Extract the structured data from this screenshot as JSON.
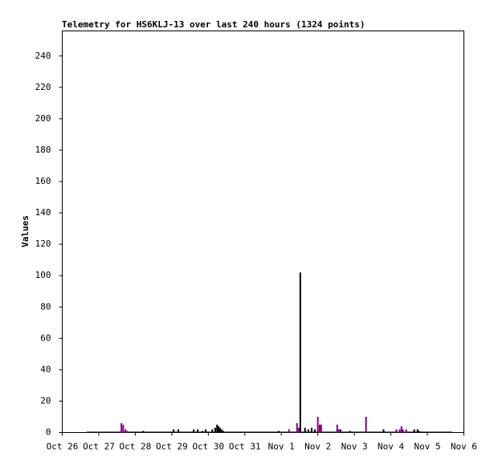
{
  "chart_data": {
    "type": "spike",
    "title": "Telemetry for HS6KLJ-13 over last 240 hours (1324 points)",
    "y_label": "Values",
    "xlim": [
      0,
      11
    ],
    "xticks": [
      {
        "value": 0,
        "label": "Oct 26"
      },
      {
        "value": 1,
        "label": "Oct 27"
      },
      {
        "value": 2,
        "label": "Oct 28"
      },
      {
        "value": 3,
        "label": "Oct 29"
      },
      {
        "value": 4,
        "label": "Oct 30"
      },
      {
        "value": 5,
        "label": "Oct 31"
      },
      {
        "value": 6,
        "label": "Nov 1"
      },
      {
        "value": 7,
        "label": "Nov 2"
      },
      {
        "value": 8,
        "label": "Nov 3"
      },
      {
        "value": 9,
        "label": "Nov 4"
      },
      {
        "value": 10,
        "label": "Nov 5"
      },
      {
        "value": 11,
        "label": "Nov 6"
      }
    ],
    "ylim": [
      0,
      256
    ],
    "yticks": [
      0,
      20,
      40,
      60,
      80,
      100,
      120,
      140,
      160,
      180,
      200,
      220,
      240
    ],
    "series": [
      {
        "color": "#000000",
        "x": [
          2.22,
          3.05,
          3.18,
          3.6,
          3.71,
          3.84,
          3.93,
          4.11,
          4.19,
          4.24,
          4.28,
          4.32,
          4.37,
          4.41,
          5.93,
          6.52,
          6.65,
          6.74,
          6.83,
          6.92,
          7.62,
          7.88,
          8.8,
          9.64,
          9.73,
          9.77
        ],
        "values": [
          1,
          2,
          2,
          2,
          2,
          1,
          2,
          2,
          3,
          5,
          4,
          3,
          2,
          1,
          1,
          102,
          3,
          2,
          3,
          2,
          2,
          1,
          2,
          2,
          2,
          1
        ]
      },
      {
        "color": "#800080",
        "x": [
          1.62,
          1.67,
          1.73,
          1.78,
          6.21,
          6.43,
          6.48,
          7.0,
          7.05,
          7.09,
          7.53,
          7.57,
          8.32,
          9.15,
          9.24,
          9.29,
          9.33,
          9.42
        ],
        "values": [
          6,
          5,
          2,
          1,
          2,
          6,
          3,
          10,
          5,
          5,
          5,
          2,
          10,
          2,
          2,
          4,
          2,
          2
        ]
      }
    ]
  }
}
